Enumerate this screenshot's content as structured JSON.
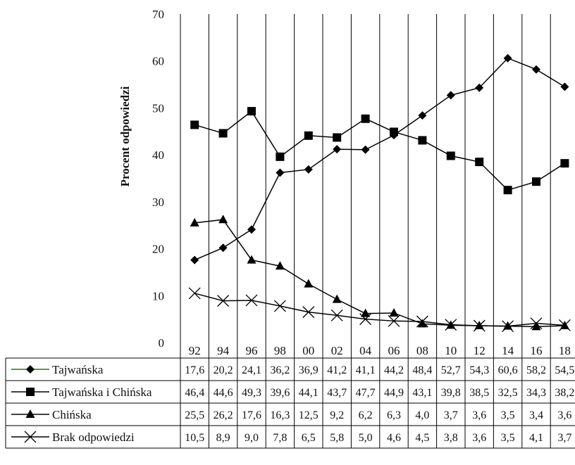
{
  "chart_data": {
    "type": "line",
    "ylabel": "Procent odpowiedzi",
    "xlabel": "",
    "title": "",
    "ylim": [
      0,
      70
    ],
    "yticks": [
      0,
      10,
      20,
      30,
      40,
      50,
      60,
      70
    ],
    "grid": "vertical lines only",
    "legend": "data table below chart",
    "categories": [
      "92",
      "94",
      "96",
      "98",
      "00",
      "02",
      "04",
      "06",
      "08",
      "10",
      "12",
      "14",
      "16",
      "18"
    ],
    "series": [
      {
        "name": "Tajwańska",
        "marker": "diamond",
        "color": "#000000",
        "legend_line_color": "#2e6b2e",
        "values": [
          17.6,
          20.2,
          24.1,
          36.2,
          36.9,
          41.2,
          41.1,
          44.2,
          48.4,
          52.7,
          54.3,
          60.6,
          58.2,
          54.5
        ],
        "labels": [
          "17,6",
          "20,2",
          "24,1",
          "36,2",
          "36,9",
          "41,2",
          "41,1",
          "44,2",
          "48,4",
          "52,7",
          "54,3",
          "60,6",
          "58,2",
          "54,5"
        ]
      },
      {
        "name": "Tajwańska i Chińska",
        "marker": "square",
        "color": "#000000",
        "legend_line_color": "#000000",
        "values": [
          46.4,
          44.6,
          49.3,
          39.6,
          44.1,
          43.7,
          47.7,
          44.9,
          43.1,
          39.8,
          38.5,
          32.5,
          34.3,
          38.2
        ],
        "labels": [
          "46,4",
          "44,6",
          "49,3",
          "39,6",
          "44,1",
          "43,7",
          "47,7",
          "44,9",
          "43,1",
          "39,8",
          "38,5",
          "32,5",
          "34,3",
          "38,2"
        ]
      },
      {
        "name": "Chińska",
        "marker": "triangle",
        "color": "#000000",
        "legend_line_color": "#000000",
        "values": [
          25.5,
          26.2,
          17.6,
          16.3,
          12.5,
          9.2,
          6.2,
          6.3,
          4.0,
          3.7,
          3.6,
          3.5,
          3.4,
          3.6
        ],
        "labels": [
          "25,5",
          "26,2",
          "17,6",
          "16,3",
          "12,5",
          "9,2",
          "6,2",
          "6,3",
          "4,0",
          "3,7",
          "3,6",
          "3,5",
          "3,4",
          "3,6"
        ]
      },
      {
        "name": "Brak odpowiedzi",
        "marker": "x",
        "color": "#000000",
        "legend_line_color": "#000000",
        "values": [
          10.5,
          8.9,
          9.0,
          7.8,
          6.5,
          5.8,
          5.0,
          4.6,
          4.5,
          3.8,
          3.6,
          3.5,
          4.1,
          3.7
        ],
        "labels": [
          "10,5",
          "8,9",
          "9,0",
          "7,8",
          "6,5",
          "5,8",
          "5,0",
          "4,6",
          "4,5",
          "3,8",
          "3,6",
          "3,5",
          "4,1",
          "3,7"
        ]
      }
    ]
  }
}
